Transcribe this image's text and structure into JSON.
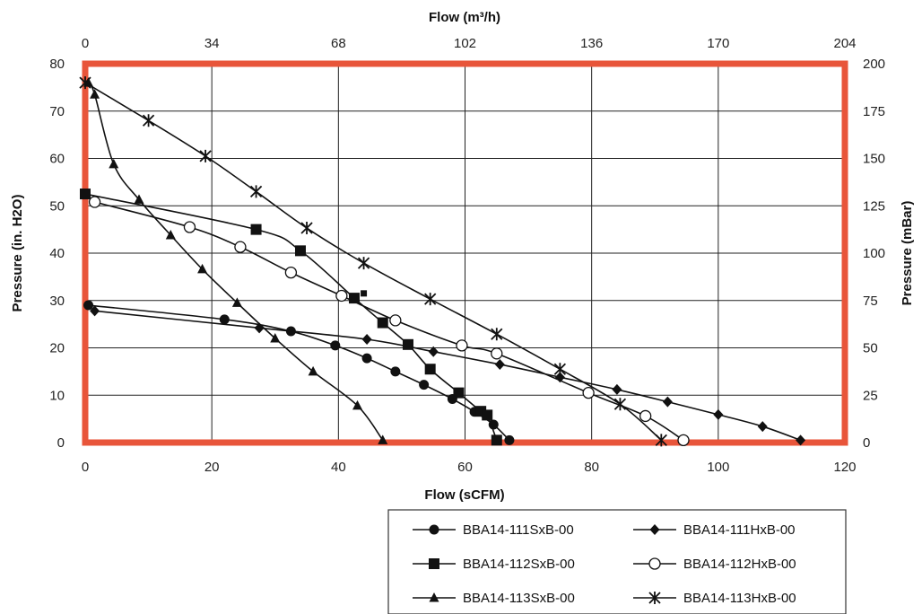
{
  "chart_data": {
    "type": "line",
    "xlabel_bottom": "Flow (sCFM)",
    "xlabel_top": "Flow (m³/h)",
    "ylabel_left": "Pressure (in. H2O)",
    "ylabel_right": "Pressure (mBar)",
    "xlim": [
      0,
      120
    ],
    "ylim": [
      0,
      80
    ],
    "xticks": [
      "0",
      "20",
      "40",
      "60",
      "80",
      "100",
      "120"
    ],
    "yticks": [
      "0",
      "10",
      "20",
      "30",
      "40",
      "50",
      "60",
      "70",
      "80"
    ],
    "xticks_top": [
      "0",
      "34",
      "68",
      "102",
      "136",
      "170",
      "204"
    ],
    "yticks_right": [
      "0",
      "25",
      "50",
      "75",
      "100",
      "125",
      "150",
      "175",
      "200"
    ],
    "grid": true,
    "frame_color": "#e8553a",
    "legend_position": "bottom-right",
    "series": [
      {
        "name": "BBA14-111SxB-00",
        "marker": "filled-circle",
        "x": [
          0.5,
          22,
          32.5,
          39.5,
          44.5,
          49,
          53.5,
          58,
          61.5,
          64.5,
          67
        ],
        "y": [
          29,
          26,
          23.5,
          20.5,
          17.8,
          15,
          12.2,
          9.2,
          6.5,
          3.8,
          0.5
        ]
      },
      {
        "name": "BBA14-111HxB-00",
        "marker": "filled-diamond",
        "x": [
          1.5,
          27.5,
          44.5,
          55,
          65.5,
          75,
          84,
          92,
          100,
          107,
          113
        ],
        "y": [
          27.8,
          24.2,
          21.8,
          19.2,
          16.5,
          13.8,
          11.2,
          8.6,
          5.9,
          3.4,
          0.5
        ]
      },
      {
        "name": "BBA14-112SxB-00",
        "marker": "filled-square",
        "x": [
          0,
          27,
          34,
          42.5,
          47,
          51,
          54.5,
          59,
          62.5,
          63.5,
          65
        ],
        "y": [
          52.5,
          45,
          40.5,
          30.5,
          25.3,
          20.7,
          15.5,
          10.5,
          6.6,
          5.8,
          0.5
        ]
      },
      {
        "name": "BBA14-112HxB-00",
        "marker": "open-circle",
        "x": [
          1.5,
          16.5,
          24.5,
          32.5,
          40.5,
          49,
          59.5,
          65,
          79.5,
          88.5,
          94.5
        ],
        "y": [
          50.8,
          45.5,
          41.3,
          35.9,
          31,
          25.8,
          20.5,
          18.8,
          10.5,
          5.6,
          0.5
        ]
      },
      {
        "name": "BBA14-113SxB-00",
        "marker": "filled-triangle",
        "x": [
          0.5,
          1.5,
          4.5,
          8.5,
          13.5,
          18.5,
          24,
          30,
          36,
          43,
          47
        ],
        "y": [
          76,
          73.5,
          58.8,
          51.3,
          43.8,
          36.6,
          29.5,
          22,
          15,
          7.8,
          0.5
        ]
      },
      {
        "name": "BBA14-113HxB-00",
        "marker": "asterisk",
        "x": [
          0,
          10,
          19,
          27,
          35,
          44,
          54.5,
          65,
          75,
          84.5,
          91
        ],
        "y": [
          76,
          68,
          60.5,
          53,
          45.3,
          37.9,
          30.3,
          22.9,
          15.5,
          8.1,
          0.5
        ]
      }
    ],
    "stray_markers": [
      {
        "marker": "small-filled-square",
        "x": 44,
        "y": 31.5
      }
    ]
  }
}
